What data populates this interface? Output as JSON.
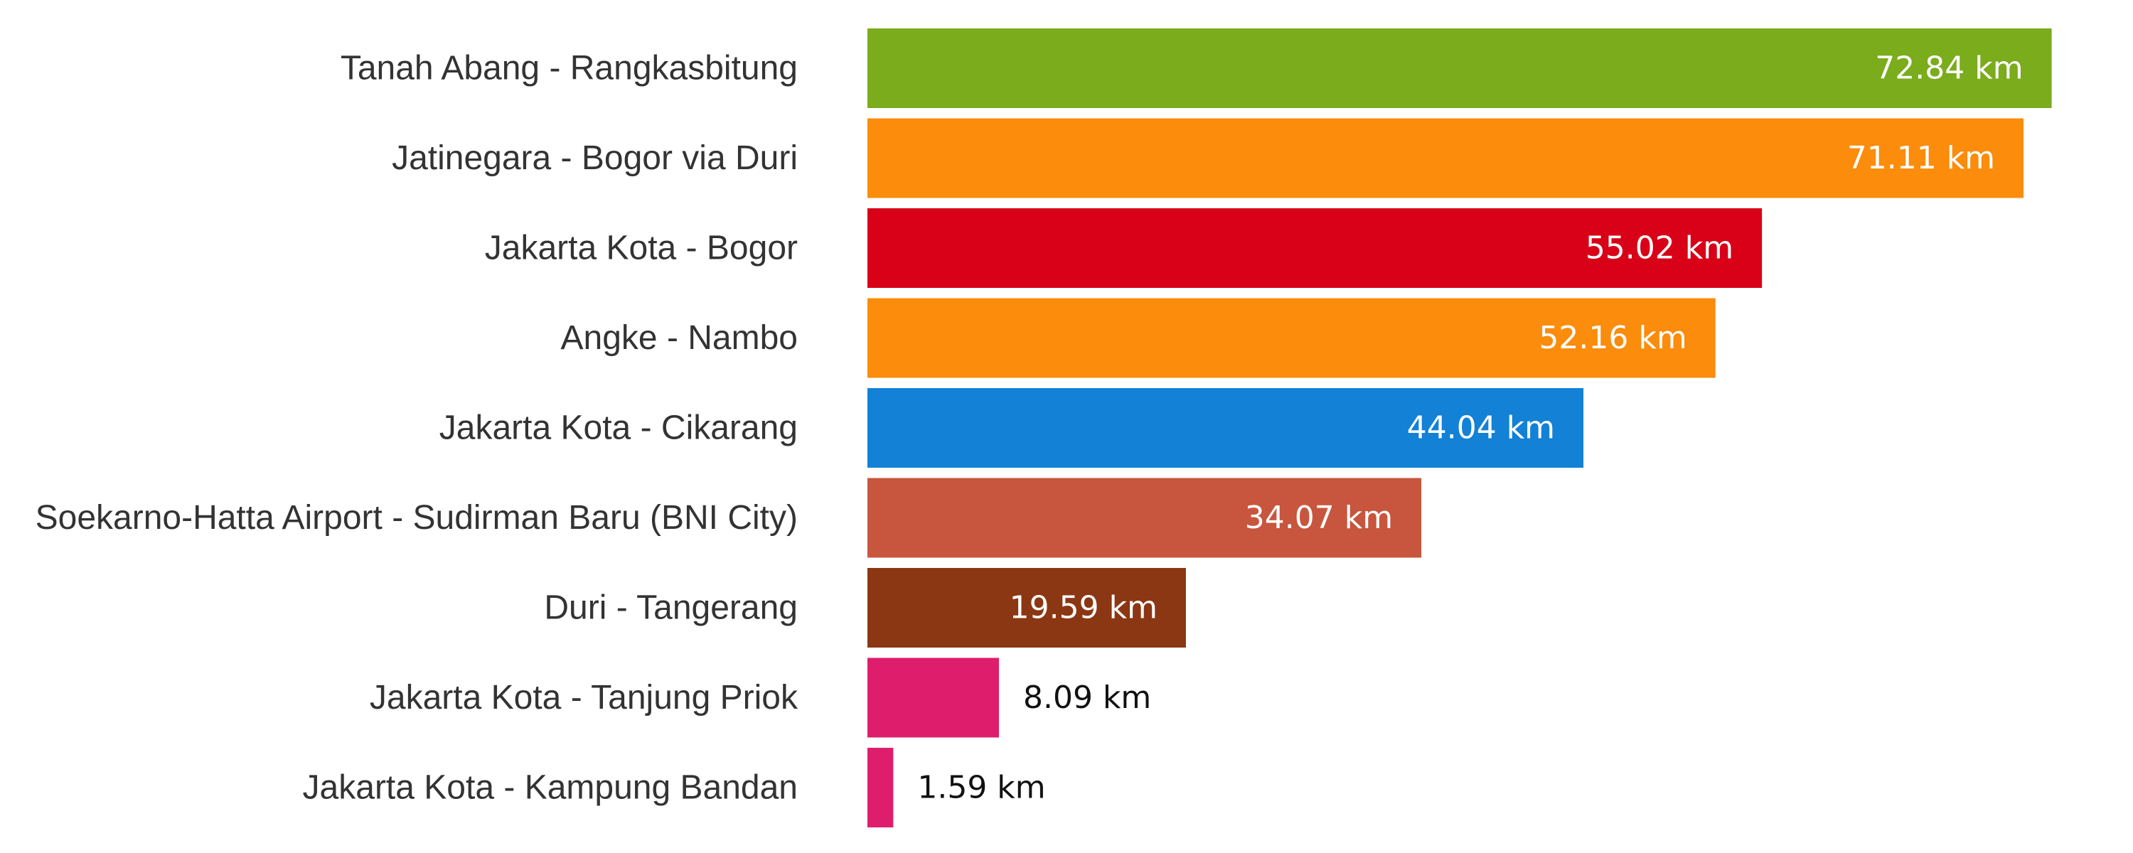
{
  "chart_data": {
    "type": "bar",
    "orientation": "horizontal",
    "title": "",
    "xlabel": "",
    "ylabel": "",
    "xlim": [
      0,
      75
    ],
    "grid": false,
    "legend": "none",
    "categories": [
      "Tanah Abang - Rangkasbitung",
      "Jatinegara - Bogor via Duri",
      "Jakarta Kota - Bogor",
      "Angke - Nambo",
      "Jakarta Kota - Cikarang",
      "Soekarno-Hatta Airport - Sudirman Baru (BNI City)",
      "Duri - Tangerang",
      "Jakarta Kota - Tanjung Priok",
      "Jakarta Kota - Kampung Bandan"
    ],
    "values": [
      72.84,
      71.11,
      55.02,
      52.16,
      44.04,
      34.07,
      19.59,
      8.09,
      1.59
    ],
    "value_labels": [
      "72.84 km",
      "71.11 km",
      "55.02 km",
      "52.16 km",
      "44.04 km",
      "34.07 km",
      "19.59 km",
      "8.09 km",
      "1.59 km"
    ],
    "colors": [
      "#7aac1c",
      "#fb8c0c",
      "#d80117",
      "#fb8c0c",
      "#1281d6",
      "#c8553d",
      "#8b3713",
      "#de1e6c",
      "#de1e6c"
    ],
    "label_color_inside": "#ffffff",
    "label_color_outside": "#111111",
    "category_label_color": "#333333"
  }
}
